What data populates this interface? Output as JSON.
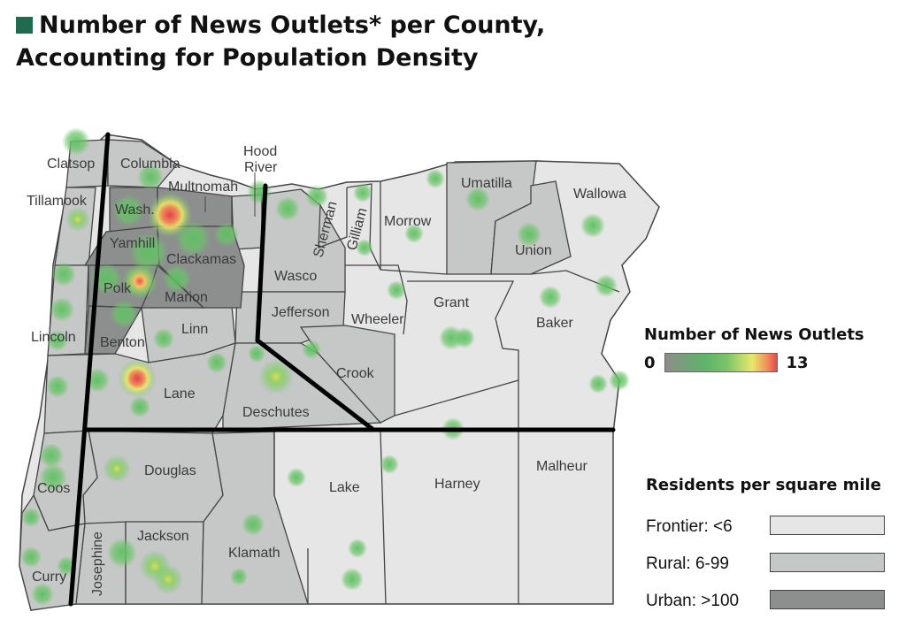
{
  "title": {
    "line1": "Number of News Outlets* per County,",
    "line2": "Accounting for Population Density"
  },
  "colors": {
    "title_square": "#1f6b4f",
    "frontier": "#e6e6e6",
    "rural": "#c6c8c7",
    "urban": "#8c8f8e",
    "border": "#333333",
    "divider": "#000000"
  },
  "legend_outlets": {
    "title": "Number of News Outlets",
    "min": "0",
    "max": "13"
  },
  "legend_density": {
    "title": "Residents per square mile",
    "items": [
      {
        "label": "Frontier: <6",
        "class": "frontier",
        "color": "#e6e6e6"
      },
      {
        "label": "Rural: 6-99",
        "class": "rural",
        "color": "#c6c8c7"
      },
      {
        "label": "Urban: >100",
        "class": "urban",
        "color": "#8c8f8e"
      }
    ]
  },
  "counties": {
    "clatsop": "Clatsop",
    "columbia": "Columbia",
    "tillamook": "Tillamook",
    "washington": "Wash.",
    "multnomah": "Multnomah",
    "hood_river_1": "Hood",
    "hood_river_2": "River",
    "yamhill": "Yamhill",
    "clackamas": "Clackamas",
    "polk": "Polk",
    "marion": "Marion",
    "lincoln": "Lincoln",
    "benton": "Benton",
    "linn": "Linn",
    "lane": "Lane",
    "wasco": "Wasco",
    "jefferson": "Jefferson",
    "sherman": "Sherman",
    "gilliam": "Gilliam",
    "morrow": "Morrow",
    "umatilla": "Umatilla",
    "union": "Union",
    "wallowa": "Wallowa",
    "wheeler": "Wheeler",
    "grant": "Grant",
    "baker": "Baker",
    "crook": "Crook",
    "deschutes": "Deschutes",
    "douglas": "Douglas",
    "coos": "Coos",
    "curry": "Curry",
    "josephine": "Josephine",
    "jackson": "Jackson",
    "klamath": "Klamath",
    "lake": "Lake",
    "harney": "Harney",
    "malheur": "Malheur"
  }
}
